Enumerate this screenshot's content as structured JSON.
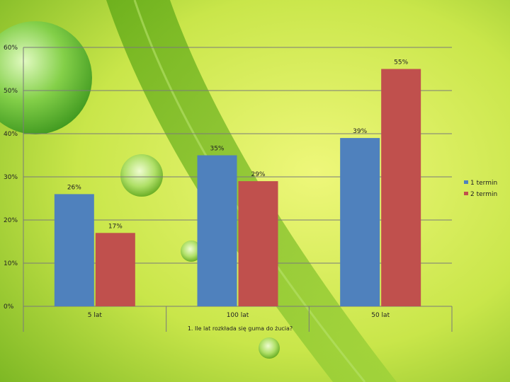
{
  "colors": {
    "series1": "#4f81bd",
    "series2": "#c0504d",
    "grid": "#7a7a7a",
    "background_light": "#e6f46a",
    "background_dark": "#6fae1e"
  },
  "chart_data": {
    "type": "bar",
    "categories": [
      "5 lat",
      "100 lat",
      "50 lat"
    ],
    "series": [
      {
        "name": "1 termin",
        "values": [
          26,
          35,
          39
        ],
        "labels": [
          "26%",
          "35%",
          "39%"
        ]
      },
      {
        "name": "2 termin",
        "values": [
          17,
          29,
          55
        ],
        "labels": [
          "17%",
          "29%",
          "55%"
        ]
      }
    ],
    "ylim": [
      0,
      60
    ],
    "yticks": [
      "0%",
      "10%",
      "20%",
      "30%",
      "40%",
      "50%",
      "60%"
    ],
    "xlabel": "1. Ile lat rozkłada się guma do żucia?",
    "ylabel": "",
    "title": "",
    "grid": true,
    "legend_position": "right"
  }
}
